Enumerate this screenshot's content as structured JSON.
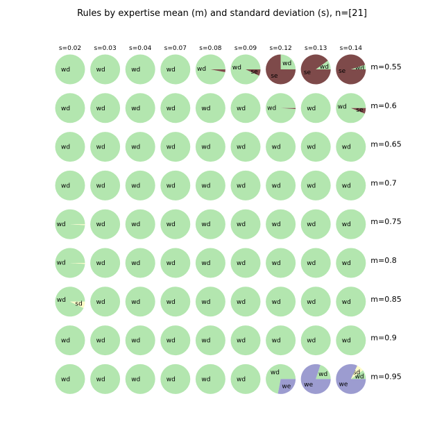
{
  "chart_data": {
    "type": "pie",
    "title": "Rules by expertise mean (m) and standard deviation (s), n=[21]",
    "columns": [
      "s=0.02",
      "s=0.03",
      "s=0.04",
      "s=0.07",
      "s=0.08",
      "s=0.09",
      "s=0.12",
      "s=0.13",
      "s=0.14"
    ],
    "rows": [
      "m=0.55",
      "m=0.6",
      "m=0.65",
      "m=0.7",
      "m=0.75",
      "m=0.8",
      "m=0.85",
      "m=0.9",
      "m=0.95"
    ],
    "categories": [
      "wd",
      "se",
      "sd",
      "we"
    ],
    "colors": {
      "wd": "#b3e6af",
      "se": "#7e4a4a",
      "sd": "#fdfdc8",
      "we": "#9c9cd0"
    },
    "cells": [
      [
        {
          "wd": 1
        },
        {
          "wd": 1
        },
        {
          "wd": 1
        },
        {
          "wd": 1
        },
        {
          "wd": 0.97,
          "se": 0.03
        },
        {
          "wd": 0.93,
          "se": 0.07
        },
        {
          "wd": 0.25,
          "se": 0.75
        },
        {
          "wd": 0.1,
          "se": 0.9
        },
        {
          "wd": 0.05,
          "se": 0.95
        }
      ],
      [
        {
          "wd": 1
        },
        {
          "wd": 1
        },
        {
          "wd": 1
        },
        {
          "wd": 1
        },
        {
          "wd": 1
        },
        {
          "wd": 1
        },
        {
          "wd": 0.99,
          "se": 0.01
        },
        {
          "wd": 1
        },
        {
          "wd": 0.94,
          "se": 0.06
        }
      ],
      [
        {
          "wd": 1
        },
        {
          "wd": 1
        },
        {
          "wd": 1
        },
        {
          "wd": 1
        },
        {
          "wd": 1
        },
        {
          "wd": 1
        },
        {
          "wd": 1
        },
        {
          "wd": 1
        },
        {
          "wd": 1
        }
      ],
      [
        {
          "wd": 1
        },
        {
          "wd": 1
        },
        {
          "wd": 1
        },
        {
          "wd": 1
        },
        {
          "wd": 1
        },
        {
          "wd": 1
        },
        {
          "wd": 1
        },
        {
          "wd": 1
        },
        {
          "wd": 1
        }
      ],
      [
        {
          "wd": 0.99,
          "sd": 0.01
        },
        {
          "wd": 1
        },
        {
          "wd": 1
        },
        {
          "wd": 1
        },
        {
          "wd": 1
        },
        {
          "wd": 1
        },
        {
          "wd": 1
        },
        {
          "wd": 1
        },
        {
          "wd": 1
        }
      ],
      [
        {
          "wd": 0.99,
          "sd": 0.01
        },
        {
          "wd": 1
        },
        {
          "wd": 1
        },
        {
          "wd": 1
        },
        {
          "wd": 1
        },
        {
          "wd": 1
        },
        {
          "wd": 1
        },
        {
          "wd": 1
        },
        {
          "wd": 1
        }
      ],
      [
        {
          "wd": 0.93,
          "sd": 0.07
        },
        {
          "wd": 1
        },
        {
          "wd": 1
        },
        {
          "wd": 1
        },
        {
          "wd": 1
        },
        {
          "wd": 1
        },
        {
          "wd": 1
        },
        {
          "wd": 1
        },
        {
          "wd": 1
        }
      ],
      [
        {
          "wd": 1
        },
        {
          "wd": 1
        },
        {
          "wd": 1
        },
        {
          "wd": 1
        },
        {
          "wd": 1
        },
        {
          "wd": 1
        },
        {
          "wd": 1
        },
        {
          "wd": 1
        },
        {
          "wd": 1
        }
      ],
      [
        {
          "wd": 1
        },
        {
          "wd": 1
        },
        {
          "wd": 1
        },
        {
          "wd": 1
        },
        {
          "wd": 1
        },
        {
          "wd": 1
        },
        {
          "wd": 0.72,
          "we": 0.28
        },
        {
          "wd": 0.2,
          "we": 0.8
        },
        {
          "wd": 0.1,
          "sd": 0.08,
          "we": 0.82
        }
      ]
    ]
  }
}
